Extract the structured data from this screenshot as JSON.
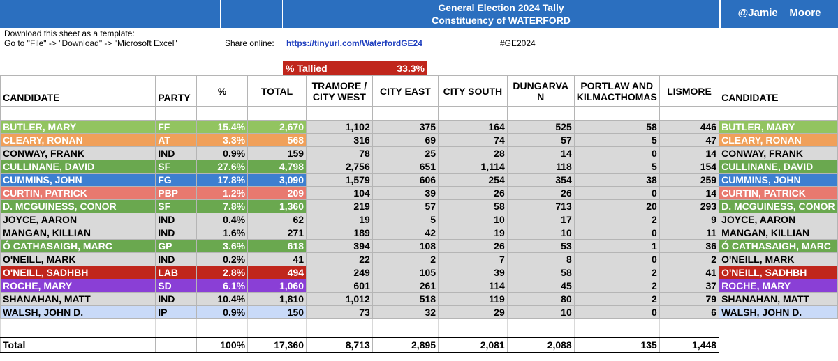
{
  "titlebar": {
    "line1": "General Election 2024 Tally",
    "line2": "Constituency of WATERFORD",
    "handle": "@Jamie__Moore",
    "color": "#2b6fbf"
  },
  "notes": {
    "download1": "Download this sheet as a template:",
    "download2": "Go to \"File\" -> \"Download\" -> \"Microsoft Excel\"",
    "share_label": "Share online:",
    "share_link": "https://tinyurl.com/WaterfordGE24",
    "hashtag": "#GE2024"
  },
  "tally": {
    "label": "% Tallied",
    "value": "33.3%",
    "color": "#c0261c"
  },
  "headers": {
    "candidate": "CANDIDATE",
    "party": "PARTY",
    "pct": "%",
    "total": "TOTAL",
    "tramore": "TRAMORE / CITY WEST",
    "city_east": "CITY EAST",
    "city_south": "CITY SOUTH",
    "dungarvan": "DUNGARVA N",
    "portlaw": "PORTLAW AND KILMACTHOMAS",
    "lismore": "LISMORE",
    "candidate2": "CANDIDATE"
  },
  "rows": [
    {
      "name": "BUTLER, MARY",
      "party": "FF",
      "pct": "15.4%",
      "total": "2,670",
      "tramore": "1,102",
      "east": "375",
      "south": "164",
      "dung": "525",
      "port": "58",
      "lis": "446",
      "color": "#92c460"
    },
    {
      "name": "CLEARY, RONAN",
      "party": "AT",
      "pct": "3.3%",
      "total": "568",
      "tramore": "316",
      "east": "69",
      "south": "74",
      "dung": "57",
      "port": "5",
      "lis": "47",
      "color": "#f0a05a"
    },
    {
      "name": "CONWAY, FRANK",
      "party": "IND",
      "pct": "0.9%",
      "total": "159",
      "tramore": "78",
      "east": "25",
      "south": "28",
      "dung": "14",
      "port": "0",
      "lis": "14",
      "color": "#d9d9d9"
    },
    {
      "name": "CULLINANE, DAVID",
      "party": "SF",
      "pct": "27.6%",
      "total": "4,798",
      "tramore": "2,756",
      "east": "651",
      "south": "1,114",
      "dung": "118",
      "port": "5",
      "lis": "154",
      "color": "#6aa84f"
    },
    {
      "name": "CUMMINS, JOHN",
      "party": "FG",
      "pct": "17.8%",
      "total": "3,090",
      "tramore": "1,579",
      "east": "606",
      "south": "254",
      "dung": "354",
      "port": "38",
      "lis": "259",
      "color": "#3d7fd0"
    },
    {
      "name": "CURTIN, PATRICK",
      "party": "PBP",
      "pct": "1.2%",
      "total": "209",
      "tramore": "104",
      "east": "39",
      "south": "26",
      "dung": "26",
      "port": "0",
      "lis": "14",
      "color": "#e8796f"
    },
    {
      "name": "D. MCGUINESS, CONOR",
      "party": "SF",
      "pct": "7.8%",
      "total": "1,360",
      "tramore": "219",
      "east": "57",
      "south": "58",
      "dung": "713",
      "port": "20",
      "lis": "293",
      "color": "#6aa84f"
    },
    {
      "name": "JOYCE, AARON",
      "party": "IND",
      "pct": "0.4%",
      "total": "62",
      "tramore": "19",
      "east": "5",
      "south": "10",
      "dung": "17",
      "port": "2",
      "lis": "9",
      "color": "#d9d9d9"
    },
    {
      "name": "MANGAN, KILLIAN",
      "party": "IND",
      "pct": "1.6%",
      "total": "271",
      "tramore": "189",
      "east": "42",
      "south": "19",
      "dung": "10",
      "port": "0",
      "lis": "11",
      "color": "#d9d9d9"
    },
    {
      "name": "Ó CATHASAIGH, MARC",
      "party": "GP",
      "pct": "3.6%",
      "total": "618",
      "tramore": "394",
      "east": "108",
      "south": "26",
      "dung": "53",
      "port": "1",
      "lis": "36",
      "color": "#6aa84f"
    },
    {
      "name": "O'NEILL, MARK",
      "party": "IND",
      "pct": "0.2%",
      "total": "41",
      "tramore": "22",
      "east": "2",
      "south": "7",
      "dung": "8",
      "port": "0",
      "lis": "2",
      "color": "#d9d9d9"
    },
    {
      "name": "O'NEILL, SADHBH",
      "party": "LAB",
      "pct": "2.8%",
      "total": "494",
      "tramore": "249",
      "east": "105",
      "south": "39",
      "dung": "58",
      "port": "2",
      "lis": "41",
      "color": "#c0261c"
    },
    {
      "name": "ROCHE, MARY",
      "party": "SD",
      "pct": "6.1%",
      "total": "1,060",
      "tramore": "601",
      "east": "261",
      "south": "114",
      "dung": "45",
      "port": "2",
      "lis": "37",
      "color": "#8a3fd6"
    },
    {
      "name": "SHANAHAN, MATT",
      "party": "IND",
      "pct": "10.4%",
      "total": "1,810",
      "tramore": "1,012",
      "east": "518",
      "south": "119",
      "dung": "80",
      "port": "2",
      "lis": "79",
      "color": "#d9d9d9"
    },
    {
      "name": "WALSH, JOHN D.",
      "party": "IP",
      "pct": "0.9%",
      "total": "150",
      "tramore": "73",
      "east": "32",
      "south": "29",
      "dung": "10",
      "port": "0",
      "lis": "6",
      "color": "#c9daf8"
    }
  ],
  "totals": {
    "label": "Total",
    "pct": "100%",
    "total": "17,360",
    "tramore": "8,713",
    "east": "2,895",
    "south": "2,081",
    "dung": "2,088",
    "port": "135",
    "lis": "1,448"
  }
}
